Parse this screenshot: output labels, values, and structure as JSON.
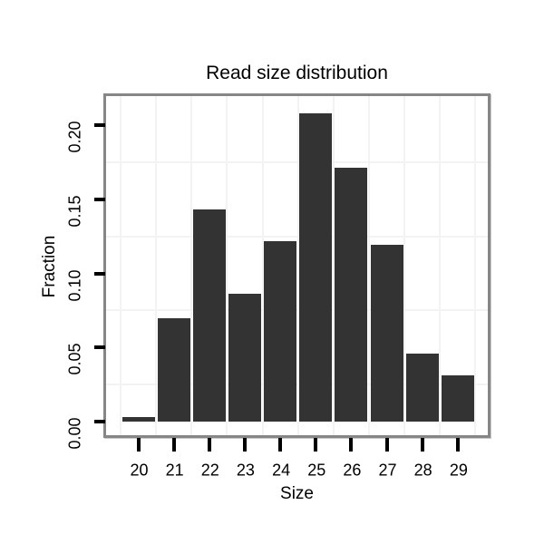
{
  "chart_data": {
    "type": "bar",
    "title": "Read size distribution",
    "xlabel": "Size",
    "ylabel": "Fraction",
    "categories": [
      "20",
      "21",
      "22",
      "23",
      "24",
      "25",
      "26",
      "27",
      "28",
      "29"
    ],
    "values": [
      0.003,
      0.07,
      0.143,
      0.086,
      0.122,
      0.208,
      0.171,
      0.119,
      0.046,
      0.031
    ],
    "ylim": [
      0,
      0.221
    ],
    "yticks": [
      0,
      0.05,
      0.1,
      0.15,
      0.2
    ],
    "ytick_labels": [
      "0.00",
      "0.05",
      "0.10",
      "0.15",
      "0.20"
    ],
    "xtick_labels": [
      "20",
      "21",
      "22",
      "23",
      "24",
      "25",
      "26",
      "27",
      "28",
      "29"
    ],
    "grid": "minor gridlines only: vertical at half-integer sizes, horizontal at 0.025 + 0.05k",
    "legend": "none",
    "colors": {
      "bar": "#333333",
      "panel_border": "#868686",
      "grid": "#f3f3f3",
      "text": "#000000",
      "background": "#ffffff"
    }
  }
}
